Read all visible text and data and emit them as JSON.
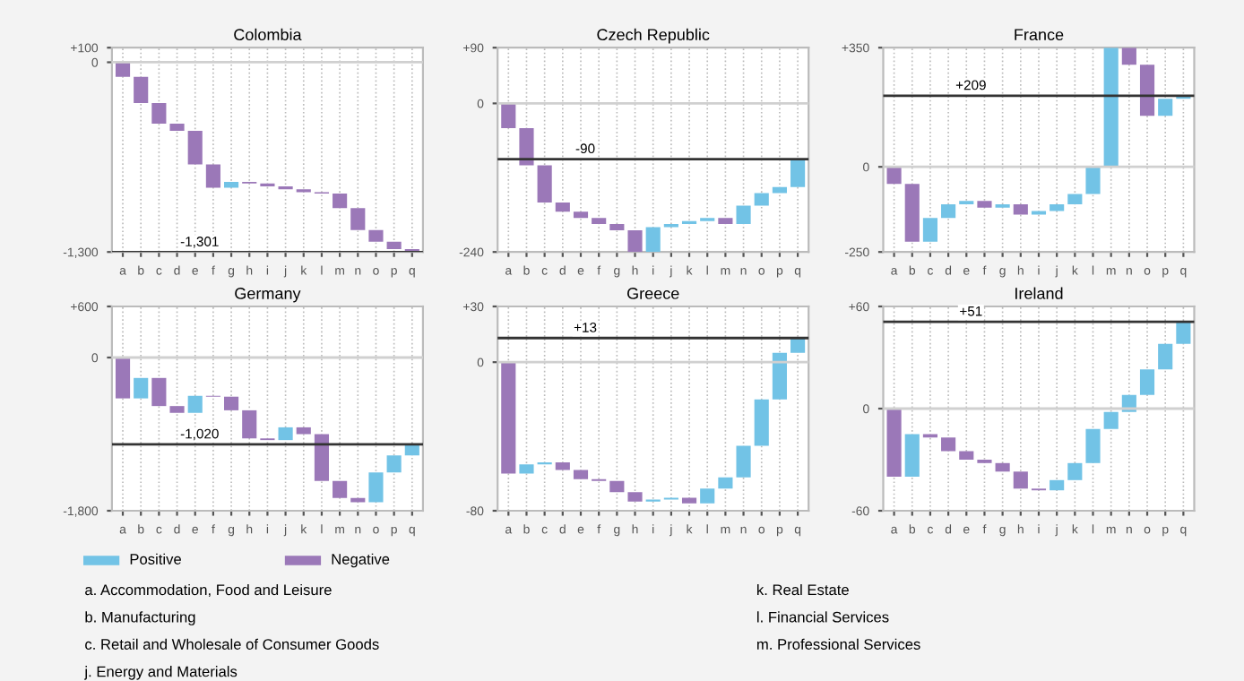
{
  "chart_data": [
    {
      "type": "bar",
      "title": "Colombia",
      "categories": [
        "a",
        "b",
        "c",
        "d",
        "e",
        "f",
        "g",
        "h",
        "i",
        "j",
        "k",
        "l",
        "m",
        "n",
        "o",
        "p",
        "q"
      ],
      "values": [
        -100,
        -180,
        -140,
        -50,
        -230,
        -160,
        40,
        -10,
        -20,
        -20,
        -20,
        -10,
        -100,
        -150,
        -80,
        -50,
        -20
      ],
      "base": [
        0,
        -100,
        -280,
        -420,
        -470,
        -700,
        -860,
        -820,
        -830,
        -850,
        -870,
        -890,
        -900,
        -1000,
        -1150,
        -1230,
        -1280
      ],
      "colors": [
        "#9b78b8",
        "#9b78b8",
        "#9b78b8",
        "#9b78b8",
        "#9b78b8",
        "#9b78b8",
        "#72c3e6",
        "#9b78b8",
        "#9b78b8",
        "#9b78b8",
        "#9b78b8",
        "#9b78b8",
        "#9b78b8",
        "#9b78b8",
        "#9b78b8",
        "#9b78b8",
        "#9b78b8"
      ],
      "ylim": [
        -1300,
        100
      ],
      "yticks": [
        {
          "value": 100,
          "label": "+100"
        },
        0,
        {
          "value": -1300,
          "label": "-1,300"
        }
      ],
      "grid": "x",
      "ref_lines": [
        {
          "axis": "y",
          "value": 0,
          "color": "#d0d0d0"
        },
        {
          "axis": "y",
          "value": -1301,
          "label": "-1,301",
          "color": "#333333"
        }
      ]
    },
    {
      "type": "bar",
      "title": "Czech Republic",
      "categories": [
        "a",
        "b",
        "c",
        "d",
        "e",
        "f",
        "g",
        "h",
        "i",
        "j",
        "k",
        "l",
        "m",
        "n",
        "o",
        "p",
        "q"
      ],
      "values": [
        -40,
        -60,
        -60,
        -15,
        -10,
        -10,
        -10,
        -35,
        40,
        5,
        5,
        5,
        -10,
        30,
        20,
        10,
        45
      ],
      "base": [
        0,
        -40,
        -100,
        -160,
        -175,
        -185,
        -195,
        -205,
        -240,
        -200,
        -195,
        -190,
        -185,
        -195,
        -165,
        -145,
        -135
      ],
      "colors": [
        "#9b78b8",
        "#9b78b8",
        "#9b78b8",
        "#9b78b8",
        "#9b78b8",
        "#9b78b8",
        "#9b78b8",
        "#9b78b8",
        "#72c3e6",
        "#72c3e6",
        "#72c3e6",
        "#72c3e6",
        "#9b78b8",
        "#72c3e6",
        "#72c3e6",
        "#72c3e6",
        "#72c3e6"
      ],
      "ylim": [
        -240,
        90
      ],
      "yticks": [
        {
          "value": 90,
          "label": "+90"
        },
        0,
        {
          "value": -240,
          "label": "-240"
        }
      ],
      "grid": "x",
      "ref_lines": [
        {
          "axis": "y",
          "value": 0,
          "color": "#d0d0d0"
        },
        {
          "axis": "y",
          "value": -90,
          "label": "-90",
          "color": "#333333"
        }
      ]
    },
    {
      "type": "bar",
      "title": "France",
      "categories": [
        "a",
        "b",
        "c",
        "d",
        "e",
        "f",
        "g",
        "h",
        "i",
        "j",
        "k",
        "l",
        "m",
        "n",
        "o",
        "p",
        "q"
      ],
      "values": [
        -50,
        -170,
        70,
        40,
        10,
        -20,
        10,
        -30,
        10,
        20,
        30,
        80,
        350,
        -50,
        -150,
        50,
        9
      ],
      "base": [
        0,
        -50,
        -220,
        -150,
        -110,
        -100,
        -120,
        -110,
        -140,
        -130,
        -110,
        -80,
        0,
        350,
        300,
        150,
        200
      ],
      "colors": [
        "#9b78b8",
        "#9b78b8",
        "#72c3e6",
        "#72c3e6",
        "#72c3e6",
        "#9b78b8",
        "#72c3e6",
        "#9b78b8",
        "#72c3e6",
        "#72c3e6",
        "#72c3e6",
        "#72c3e6",
        "#72c3e6",
        "#9b78b8",
        "#9b78b8",
        "#72c3e6",
        "#72c3e6"
      ],
      "ylim": [
        -250,
        350
      ],
      "yticks": [
        {
          "value": 350,
          "label": "+350"
        },
        0,
        {
          "value": -250,
          "label": "-250"
        }
      ],
      "grid": "x",
      "ref_lines": [
        {
          "axis": "y",
          "value": 0,
          "color": "#d0d0d0"
        },
        {
          "axis": "y",
          "value": 209,
          "label": "+209",
          "color": "#333333"
        }
      ]
    },
    {
      "type": "bar",
      "title": "Germany",
      "categories": [
        "a",
        "b",
        "c",
        "d",
        "e",
        "f",
        "g",
        "h",
        "i",
        "j",
        "k",
        "l",
        "m",
        "n",
        "o",
        "p",
        "q"
      ],
      "values": [
        -480,
        240,
        -330,
        -80,
        200,
        -10,
        -160,
        -330,
        -20,
        150,
        -80,
        -550,
        -200,
        -50,
        350,
        200,
        130
      ],
      "base": [
        0,
        -480,
        -240,
        -570,
        -650,
        -450,
        -460,
        -620,
        -950,
        -970,
        -820,
        -900,
        -1450,
        -1650,
        -1700,
        -1350,
        -1150
      ],
      "colors": [
        "#9b78b8",
        "#72c3e6",
        "#9b78b8",
        "#9b78b8",
        "#72c3e6",
        "#9b78b8",
        "#9b78b8",
        "#9b78b8",
        "#9b78b8",
        "#72c3e6",
        "#9b78b8",
        "#9b78b8",
        "#9b78b8",
        "#9b78b8",
        "#72c3e6",
        "#72c3e6",
        "#72c3e6"
      ],
      "ylim": [
        -1800,
        600
      ],
      "yticks": [
        {
          "value": 600,
          "label": "+600"
        },
        0,
        {
          "value": -1800,
          "label": "-1,800"
        }
      ],
      "grid": "x",
      "ref_lines": [
        {
          "axis": "y",
          "value": 0,
          "color": "#d0d0d0"
        },
        {
          "axis": "y",
          "value": -1020,
          "label": "-1,020",
          "color": "#333333"
        }
      ]
    },
    {
      "type": "bar",
      "title": "Greece",
      "categories": [
        "a",
        "b",
        "c",
        "d",
        "e",
        "f",
        "g",
        "h",
        "i",
        "j",
        "k",
        "l",
        "m",
        "n",
        "o",
        "p",
        "q"
      ],
      "values": [
        -60,
        5,
        1,
        -4,
        -5,
        -1,
        -6,
        -5,
        1,
        1,
        -3,
        8,
        6,
        17,
        25,
        25,
        8
      ],
      "base": [
        0,
        -60,
        -55,
        -54,
        -58,
        -63,
        -64,
        -70,
        -75,
        -74,
        -73,
        -76,
        -68,
        -62,
        -45,
        -20,
        5
      ],
      "colors": [
        "#9b78b8",
        "#72c3e6",
        "#72c3e6",
        "#9b78b8",
        "#9b78b8",
        "#9b78b8",
        "#9b78b8",
        "#9b78b8",
        "#72c3e6",
        "#72c3e6",
        "#9b78b8",
        "#72c3e6",
        "#72c3e6",
        "#72c3e6",
        "#72c3e6",
        "#72c3e6",
        "#72c3e6"
      ],
      "ylim": [
        -80,
        30
      ],
      "yticks": [
        {
          "value": 30,
          "label": "+30"
        },
        0,
        {
          "value": -80,
          "label": "-80"
        }
      ],
      "grid": "x",
      "ref_lines": [
        {
          "axis": "y",
          "value": 0,
          "color": "#d0d0d0"
        },
        {
          "axis": "y",
          "value": 13,
          "label": "+13",
          "color": "#333333"
        }
      ]
    },
    {
      "type": "bar",
      "title": "Ireland",
      "categories": [
        "a",
        "b",
        "c",
        "d",
        "e",
        "f",
        "g",
        "h",
        "i",
        "j",
        "k",
        "l",
        "m",
        "n",
        "o",
        "p",
        "q"
      ],
      "values": [
        -40,
        25,
        -2,
        -8,
        -5,
        -2,
        -5,
        -10,
        -1,
        6,
        10,
        20,
        10,
        10,
        15,
        15,
        13
      ],
      "base": [
        0,
        -40,
        -15,
        -17,
        -25,
        -30,
        -32,
        -37,
        -47,
        -48,
        -42,
        -32,
        -12,
        -2,
        8,
        23,
        38
      ],
      "colors": [
        "#9b78b8",
        "#72c3e6",
        "#9b78b8",
        "#9b78b8",
        "#9b78b8",
        "#9b78b8",
        "#9b78b8",
        "#9b78b8",
        "#9b78b8",
        "#72c3e6",
        "#72c3e6",
        "#72c3e6",
        "#72c3e6",
        "#72c3e6",
        "#72c3e6",
        "#72c3e6",
        "#72c3e6"
      ],
      "ylim": [
        -60,
        60
      ],
      "yticks": [
        {
          "value": 60,
          "label": "+60"
        },
        0,
        {
          "value": -60,
          "label": "-60"
        }
      ],
      "grid": "x",
      "ref_lines": [
        {
          "axis": "y",
          "value": 0,
          "color": "#d0d0d0"
        },
        {
          "axis": "y",
          "value": 51,
          "label": "+51",
          "color": "#333333"
        }
      ]
    },
    {
      "type": "other",
      "legend": "top left",
      "series": [
        {
          "name": "Positive",
          "color": "#72c3e6"
        },
        {
          "name": "Negative",
          "color": "#9b78b8"
        }
      ],
      "annotations": [
        "a. Accommodation, Food and Leisure",
        "b. Manufacturing",
        "c. Retail and Wholesale of Consumer Goods",
        "j. Energy and Materials",
        "k. Real Estate",
        "l. Financial Services",
        "m. Professional Services"
      ]
    }
  ]
}
